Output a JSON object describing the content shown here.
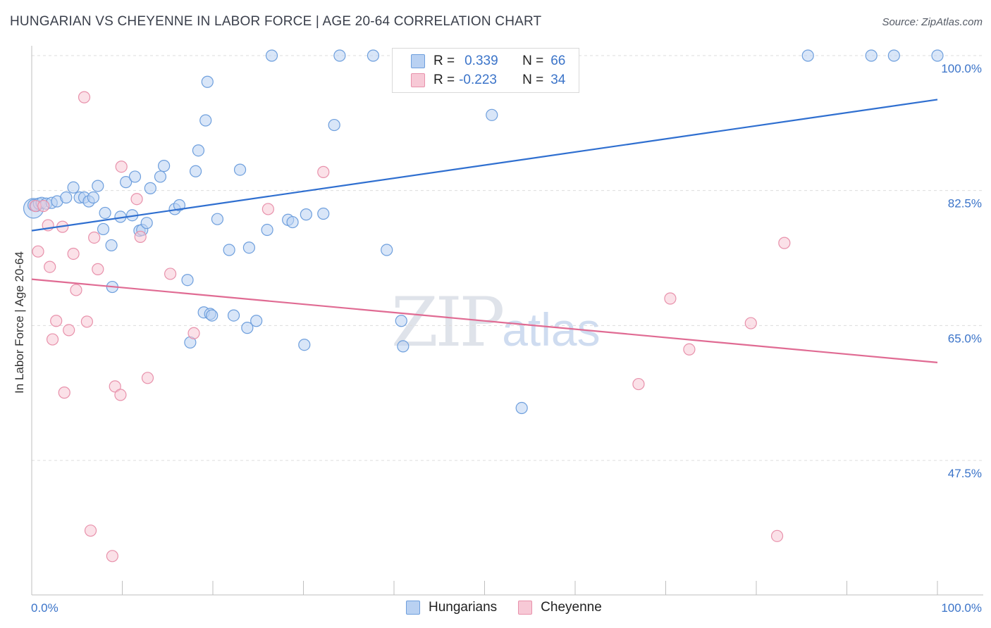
{
  "header": {
    "title": "HUNGARIAN VS CHEYENNE IN LABOR FORCE | AGE 20-64 CORRELATION CHART",
    "source": "Source: ZipAtlas.com"
  },
  "legend": {
    "rows": [
      {
        "r_label": "R =",
        "r_value": "0.339",
        "n_label": "N =",
        "n_value": "66"
      },
      {
        "r_label": "R =",
        "r_value": "-0.223",
        "n_label": "N =",
        "n_value": "34"
      }
    ],
    "bottom": [
      "Hungarians",
      "Cheyenne"
    ]
  },
  "watermark": {
    "zip": "ZIP",
    "atlas": "atlas"
  },
  "colors": {
    "blue_fill": "#b9d1f2",
    "blue_stroke": "#6e9fdd",
    "blue_line": "#2f6fd0",
    "pink_fill": "#f7c9d6",
    "pink_stroke": "#e891ab",
    "pink_line": "#e06b93",
    "tick_text": "#3b74c9",
    "grid": "#dddddd"
  },
  "chart_data": {
    "type": "scatter",
    "title": "HUNGARIAN VS CHEYENNE IN LABOR FORCE | AGE 20-64 CORRELATION CHART",
    "xlabel": "",
    "ylabel": "In Labor Force | Age 20-64",
    "xlim": [
      0,
      100
    ],
    "ylim": [
      30,
      102
    ],
    "y_ticks": [
      100.0,
      82.5,
      65.0,
      47.5
    ],
    "y_tick_labels": [
      "100.0%",
      "82.5%",
      "65.0%",
      "47.5%"
    ],
    "x_tick_labels": [
      "0.0%",
      "100.0%"
    ],
    "series": [
      {
        "name": "Hungarians",
        "r": 0.339,
        "n": 66,
        "trend": {
          "x": [
            0,
            100
          ],
          "y": [
            77.3,
            94.3
          ]
        },
        "points": [
          [
            0.2,
            80.6
          ],
          [
            0.5,
            80.5
          ],
          [
            0.8,
            80.8
          ],
          [
            1.1,
            80.9
          ],
          [
            1.6,
            80.8
          ],
          [
            2.2,
            80.9
          ],
          [
            2.8,
            81.1
          ],
          [
            3.8,
            81.6
          ],
          [
            4.6,
            82.9
          ],
          [
            5.3,
            81.6
          ],
          [
            5.8,
            81.6
          ],
          [
            6.3,
            81.1
          ],
          [
            6.8,
            81.6
          ],
          [
            7.3,
            83.1
          ],
          [
            8.1,
            79.6
          ],
          [
            7.9,
            77.5
          ],
          [
            8.8,
            75.4
          ],
          [
            8.9,
            70.0
          ],
          [
            9.8,
            79.1
          ],
          [
            10.4,
            83.6
          ],
          [
            11.1,
            79.3
          ],
          [
            11.4,
            84.3
          ],
          [
            11.9,
            77.3
          ],
          [
            12.2,
            77.4
          ],
          [
            12.7,
            78.3
          ],
          [
            13.1,
            82.8
          ],
          [
            14.2,
            84.3
          ],
          [
            14.6,
            85.7
          ],
          [
            15.8,
            80.1
          ],
          [
            16.3,
            80.6
          ],
          [
            17.2,
            70.9
          ],
          [
            17.5,
            62.8
          ],
          [
            18.1,
            85.0
          ],
          [
            18.4,
            87.7
          ],
          [
            19.0,
            66.7
          ],
          [
            19.2,
            91.6
          ],
          [
            19.4,
            96.6
          ],
          [
            19.7,
            66.5
          ],
          [
            19.9,
            66.3
          ],
          [
            20.5,
            78.8
          ],
          [
            21.8,
            74.8
          ],
          [
            22.3,
            66.3
          ],
          [
            23.0,
            85.2
          ],
          [
            23.8,
            64.7
          ],
          [
            24.0,
            75.1
          ],
          [
            24.8,
            65.6
          ],
          [
            26.0,
            77.4
          ],
          [
            26.5,
            100.0
          ],
          [
            28.3,
            78.7
          ],
          [
            28.8,
            78.4
          ],
          [
            30.1,
            62.5
          ],
          [
            30.3,
            79.4
          ],
          [
            32.2,
            79.5
          ],
          [
            33.4,
            91.0
          ],
          [
            34.0,
            100.0
          ],
          [
            37.7,
            100.0
          ],
          [
            39.2,
            74.8
          ],
          [
            40.8,
            65.6
          ],
          [
            41.0,
            62.3
          ],
          [
            50.8,
            92.3
          ],
          [
            54.1,
            54.3
          ],
          [
            56.8,
            100.0
          ],
          [
            85.7,
            100.0
          ],
          [
            92.7,
            100.0
          ],
          [
            95.2,
            100.0
          ],
          [
            100.0,
            100.0
          ]
        ]
      },
      {
        "name": "Cheyenne",
        "r": -0.223,
        "n": 34,
        "trend": {
          "x": [
            0,
            100
          ],
          "y": [
            71.0,
            60.2
          ]
        },
        "points": [
          [
            0.4,
            80.5
          ],
          [
            0.7,
            74.6
          ],
          [
            1.3,
            80.5
          ],
          [
            1.8,
            78.0
          ],
          [
            2.0,
            72.6
          ],
          [
            2.3,
            63.2
          ],
          [
            2.7,
            65.6
          ],
          [
            3.4,
            77.8
          ],
          [
            3.6,
            56.3
          ],
          [
            4.1,
            64.4
          ],
          [
            4.6,
            74.3
          ],
          [
            4.9,
            69.6
          ],
          [
            5.8,
            94.6
          ],
          [
            6.1,
            65.5
          ],
          [
            6.5,
            38.4
          ],
          [
            6.9,
            76.4
          ],
          [
            7.3,
            72.3
          ],
          [
            8.9,
            35.1
          ],
          [
            9.2,
            57.1
          ],
          [
            9.8,
            56.0
          ],
          [
            9.9,
            85.6
          ],
          [
            11.6,
            81.4
          ],
          [
            12.0,
            76.5
          ],
          [
            12.8,
            58.2
          ],
          [
            15.3,
            71.7
          ],
          [
            17.9,
            64.0
          ],
          [
            26.1,
            80.1
          ],
          [
            32.2,
            84.9
          ],
          [
            67.0,
            57.4
          ],
          [
            70.5,
            68.5
          ],
          [
            72.6,
            61.9
          ],
          [
            79.4,
            65.3
          ],
          [
            82.3,
            37.7
          ],
          [
            83.1,
            75.7
          ]
        ]
      }
    ]
  }
}
